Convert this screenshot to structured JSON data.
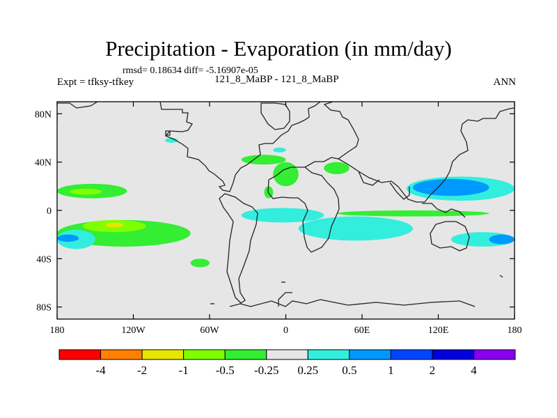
{
  "chart_data": {
    "type": "heatmap",
    "title": "Precipitation - Evaporation (in mm/day)",
    "stats": "rmsd= 0.18634 diff= -5.16907e-05",
    "case_id": "121_8_MaBP - 121_8_MaBP",
    "experiment": "Expt = tfksy-tfkey",
    "season": "ANN",
    "xlim": [
      -180,
      180
    ],
    "ylim": [
      -90,
      90
    ],
    "x_ticks": [
      {
        "value": -180,
        "label": "180"
      },
      {
        "value": -120,
        "label": "120W"
      },
      {
        "value": -60,
        "label": "60W"
      },
      {
        "value": 0,
        "label": "0"
      },
      {
        "value": 60,
        "label": "60E"
      },
      {
        "value": 120,
        "label": "120E"
      },
      {
        "value": 180,
        "label": "180"
      }
    ],
    "y_ticks": [
      {
        "value": 80,
        "label": "80N"
      },
      {
        "value": 40,
        "label": "40N"
      },
      {
        "value": 0,
        "label": "0"
      },
      {
        "value": -40,
        "label": "40S"
      },
      {
        "value": -80,
        "label": "80S"
      }
    ],
    "colorbar": {
      "colors": [
        "#ff0000",
        "#ff8000",
        "#e6e600",
        "#80ff00",
        "#33ee33",
        "#e6e6e6",
        "#33eedd",
        "#0099ff",
        "#0044ff",
        "#0000dd",
        "#8800ee"
      ],
      "levels": [
        "-4",
        "-2",
        "-1",
        "-0.5",
        "-0.25",
        "0.25",
        "0.5",
        "1",
        "2",
        "4"
      ]
    },
    "background_color": "#e6e6e6",
    "regions": [
      {
        "name": "north-pacific-green",
        "level": "-0.5 to -0.25",
        "color": "#33ee33",
        "lon": [
          -180,
          -125
        ],
        "lat": [
          10,
          22
        ]
      },
      {
        "name": "north-pacific-light-green",
        "level": "-1 to -0.5",
        "color": "#80ff00",
        "lon": [
          -170,
          -145
        ],
        "lat": [
          13,
          18
        ]
      },
      {
        "name": "south-pacific-green",
        "level": "-0.5 to -0.25",
        "color": "#33ee33",
        "lon": [
          -180,
          -75
        ],
        "lat": [
          -30,
          -8
        ]
      },
      {
        "name": "south-pacific-light-green",
        "level": "-1 to -0.5",
        "color": "#80ff00",
        "lon": [
          -160,
          -110
        ],
        "lat": [
          -18,
          -8
        ]
      },
      {
        "name": "south-pacific-yellow",
        "level": "-2 to -1",
        "color": "#e6e600",
        "lon": [
          -142,
          -128
        ],
        "lat": [
          -14,
          -10
        ]
      },
      {
        "name": "southwest-pacific-cyan",
        "level": "0.25 to 0.5",
        "color": "#33eedd",
        "lon": [
          -180,
          -150
        ],
        "lat": [
          -32,
          -16
        ]
      },
      {
        "name": "southwest-pacific-blue",
        "level": "0.5 to 1",
        "color": "#0099ff",
        "lon": [
          -180,
          -163
        ],
        "lat": [
          -26,
          -20
        ]
      },
      {
        "name": "south-atlantic-green",
        "level": "-0.5 to -0.25",
        "color": "#33ee33",
        "lon": [
          -75,
          -60
        ],
        "lat": [
          -47,
          -40
        ]
      },
      {
        "name": "tropical-africa-cyan",
        "level": "0.25 to 0.5",
        "color": "#33eedd",
        "lon": [
          -35,
          30
        ],
        "lat": [
          -10,
          2
        ]
      },
      {
        "name": "indian-ocean-cyan",
        "level": "0.25 to 0.5",
        "color": "#33eedd",
        "lon": [
          10,
          100
        ],
        "lat": [
          -25,
          -5
        ]
      },
      {
        "name": "equatorial-band-green",
        "level": "-0.5 to -0.25",
        "color": "#33ee33",
        "lon": [
          40,
          160
        ],
        "lat": [
          -5,
          0
        ]
      },
      {
        "name": "northwest-pacific-cyan",
        "level": "0.25 to 0.5",
        "color": "#33eedd",
        "lon": [
          95,
          180
        ],
        "lat": [
          8,
          28
        ]
      },
      {
        "name": "northwest-pacific-blue",
        "level": "0.5 to 1",
        "color": "#0099ff",
        "lon": [
          100,
          160
        ],
        "lat": [
          12,
          26
        ]
      },
      {
        "name": "southeast-indian-cyan",
        "level": "0.25 to 0.5",
        "color": "#33eedd",
        "lon": [
          130,
          180
        ],
        "lat": [
          -30,
          -18
        ]
      },
      {
        "name": "southeast-indian-blue",
        "level": "0.5 to 1",
        "color": "#0099ff",
        "lon": [
          160,
          180
        ],
        "lat": [
          -28,
          -20
        ]
      },
      {
        "name": "europe-green",
        "level": "-0.5 to -0.25",
        "color": "#33ee33",
        "lon": [
          -35,
          0
        ],
        "lat": [
          38,
          46
        ]
      },
      {
        "name": "mediterranean-green",
        "level": "-0.5 to -0.25",
        "color": "#33ee33",
        "lon": [
          -10,
          10
        ],
        "lat": [
          20,
          40
        ]
      },
      {
        "name": "central-asia-green",
        "level": "-0.5 to -0.25",
        "color": "#33ee33",
        "lon": [
          30,
          50
        ],
        "lat": [
          30,
          40
        ]
      },
      {
        "name": "north-africa-green",
        "level": "-0.5 to -0.25",
        "color": "#33ee33",
        "lon": [
          -17,
          -10
        ],
        "lat": [
          10,
          20
        ]
      },
      {
        "name": "north-america-cyan",
        "level": "0.25 to 0.5",
        "color": "#33eedd",
        "lon": [
          -95,
          -85
        ],
        "lat": [
          56,
          60
        ]
      },
      {
        "name": "greenland-cyan",
        "level": "0.25 to 0.5",
        "color": "#33eedd",
        "lon": [
          -10,
          0
        ],
        "lat": [
          48,
          52
        ]
      }
    ]
  }
}
